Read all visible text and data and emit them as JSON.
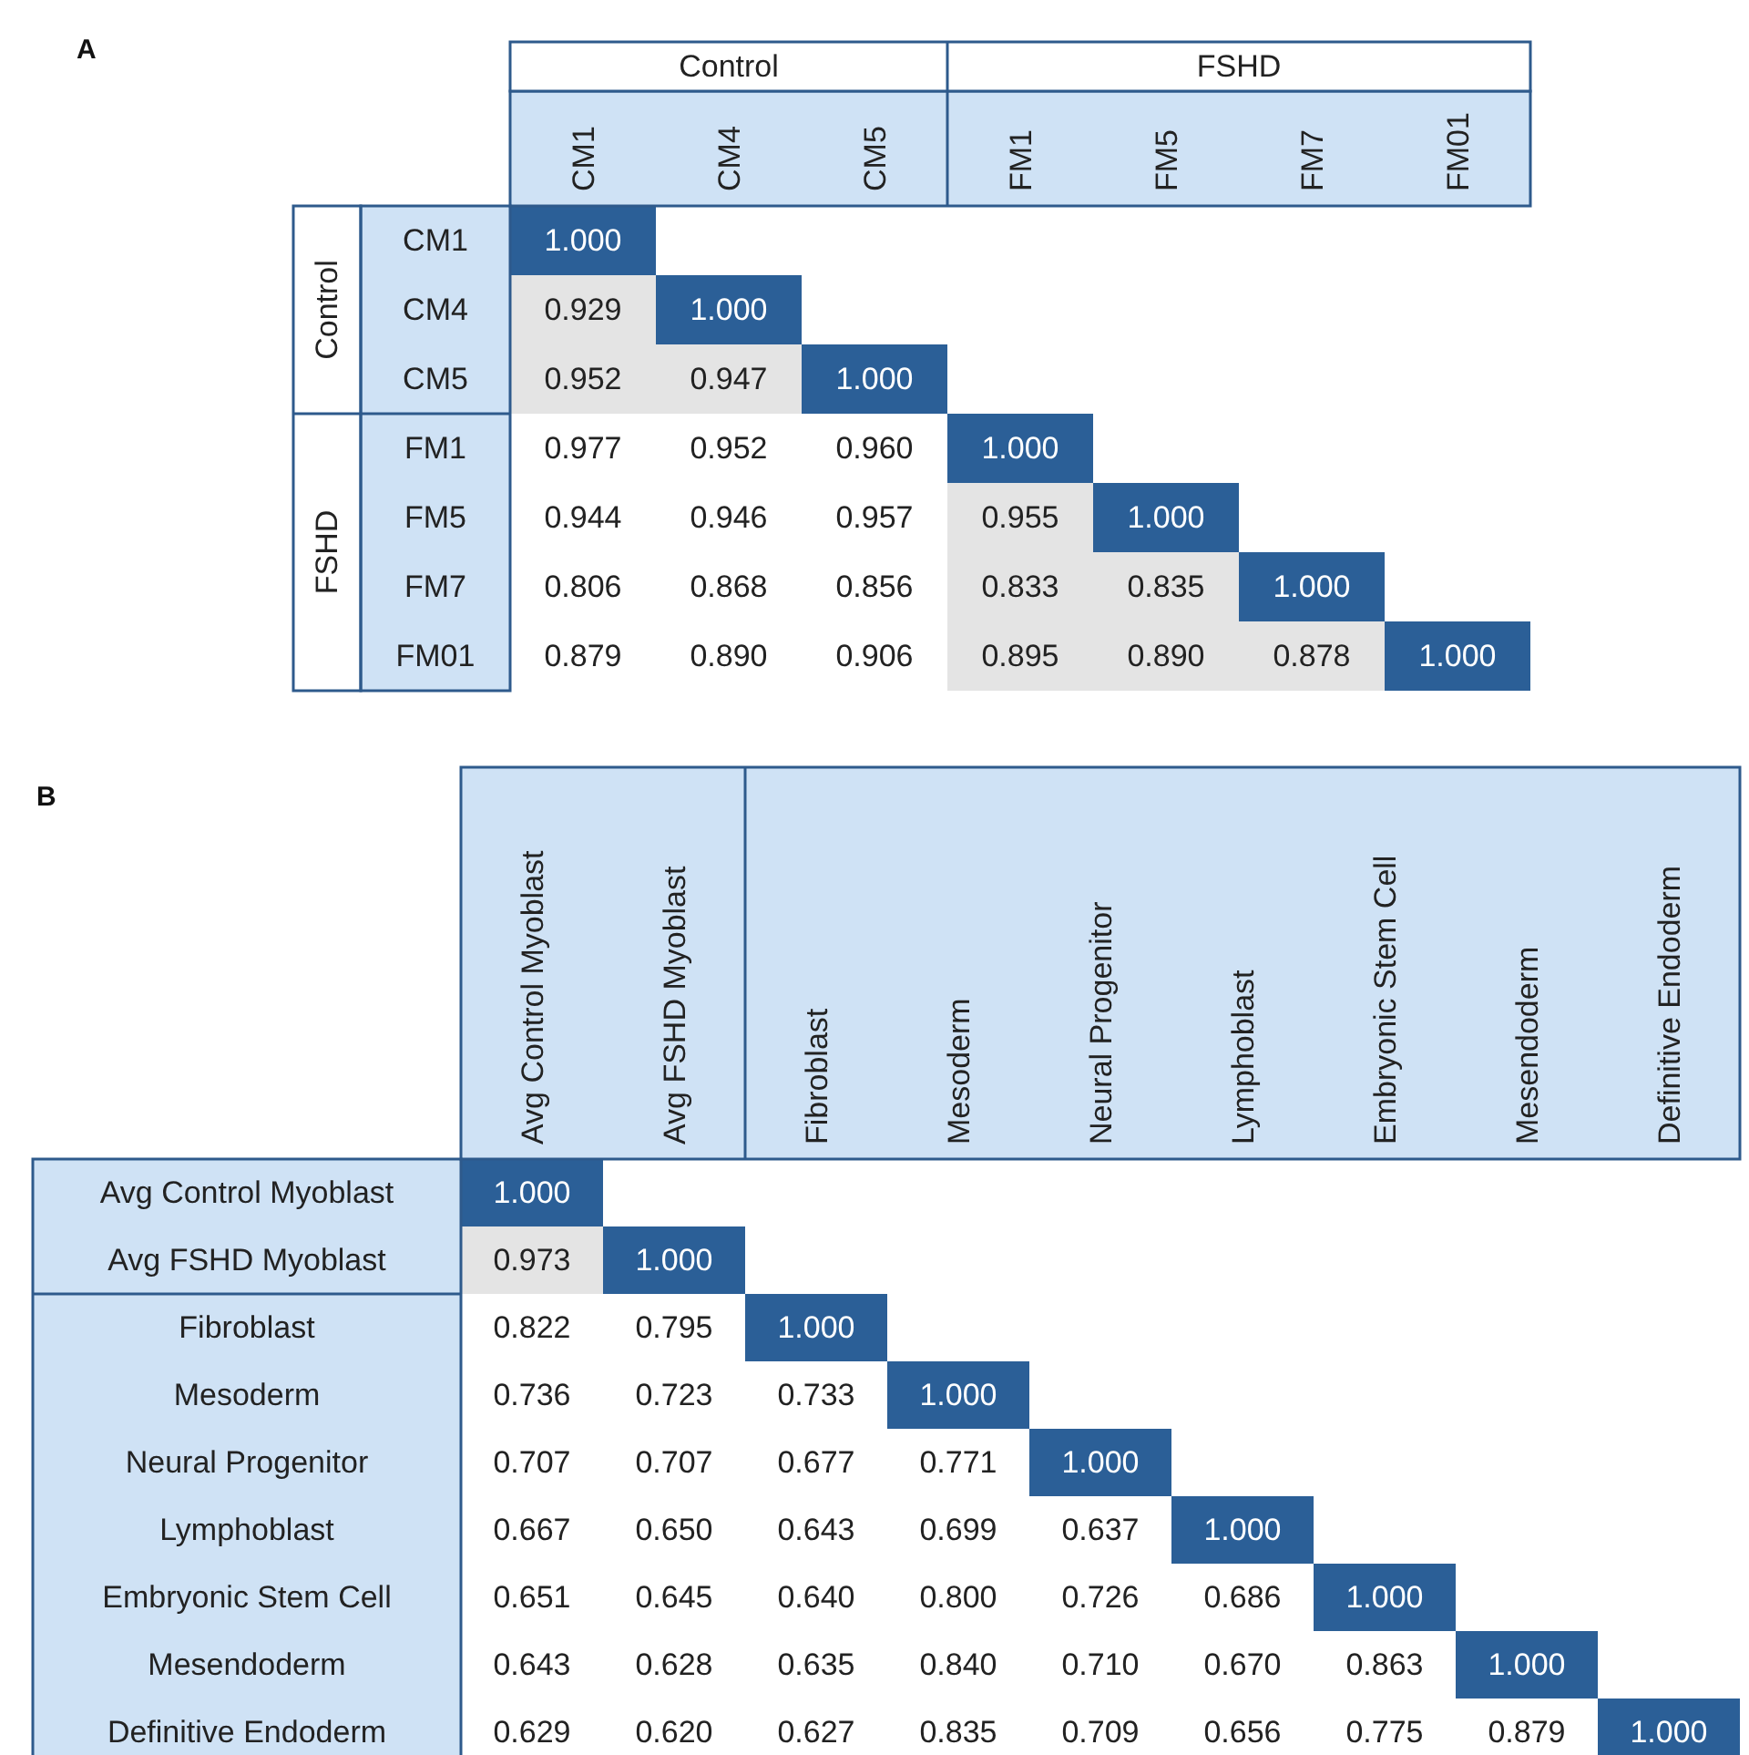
{
  "chart_data": [
    {
      "type": "heatmap",
      "annotations": [
        "A",
        "Control",
        "FSHD",
        "Control",
        "FSHD"
      ],
      "categories": [
        "CM1",
        "CM4",
        "CM5",
        "FM1",
        "FM5",
        "FM7",
        "FM01"
      ],
      "y_categories": [
        "CM1",
        "CM4",
        "CM5",
        "FM1",
        "FM5",
        "FM7",
        "FM01"
      ],
      "cells": [
        [
          1.0,
          null,
          null,
          null,
          null,
          null,
          null
        ],
        [
          0.929,
          1.0,
          null,
          null,
          null,
          null,
          null
        ],
        [
          0.952,
          0.947,
          1.0,
          null,
          null,
          null,
          null
        ],
        [
          0.977,
          0.952,
          0.96,
          1.0,
          null,
          null,
          null
        ],
        [
          0.944,
          0.946,
          0.957,
          0.955,
          1.0,
          null,
          null
        ],
        [
          0.806,
          0.868,
          0.856,
          0.833,
          0.835,
          1.0,
          null
        ],
        [
          0.879,
          0.89,
          0.906,
          0.895,
          0.89,
          0.878,
          1.0
        ]
      ],
      "cell_labels": [
        [
          "1.000",
          null,
          null,
          null,
          null,
          null,
          null
        ],
        [
          "0.929",
          "1.000",
          null,
          null,
          null,
          null,
          null
        ],
        [
          "0.952",
          "0.947",
          "1.000",
          null,
          null,
          null,
          null
        ],
        [
          "0.977",
          "0.952",
          "0.960",
          "1.000",
          null,
          null,
          null
        ],
        [
          "0.944",
          "0.946",
          "0.957",
          "0.955",
          "1.000",
          null,
          null
        ],
        [
          "0.806",
          "0.868",
          "0.856",
          "0.833",
          "0.835",
          "1.000",
          null
        ],
        [
          "0.879",
          "0.890",
          "0.906",
          "0.895",
          "0.890",
          "0.878",
          "1.000"
        ]
      ]
    },
    {
      "type": "heatmap",
      "annotations": [
        "B"
      ],
      "categories": [
        "Avg Control Myoblast",
        "Avg FSHD Myoblast",
        "Fibroblast",
        "Mesoderm",
        "Neural Progenitor",
        "Lymphoblast",
        "Embryonic Stem Cell",
        "Mesendoderm",
        "Definitive Endoderm"
      ],
      "y_categories": [
        "Avg Control Myoblast",
        "Avg FSHD Myoblast",
        "Fibroblast",
        "Mesoderm",
        "Neural Progenitor",
        "Lymphoblast",
        "Embryonic Stem Cell",
        "Mesendoderm",
        "Definitive Endoderm"
      ],
      "cells": [
        [
          1.0,
          null,
          null,
          null,
          null,
          null,
          null,
          null,
          null
        ],
        [
          0.973,
          1.0,
          null,
          null,
          null,
          null,
          null,
          null,
          null
        ],
        [
          0.822,
          0.795,
          1.0,
          null,
          null,
          null,
          null,
          null,
          null
        ],
        [
          0.736,
          0.723,
          0.733,
          1.0,
          null,
          null,
          null,
          null,
          null
        ],
        [
          0.707,
          0.707,
          0.677,
          0.771,
          1.0,
          null,
          null,
          null,
          null
        ],
        [
          0.667,
          0.65,
          0.643,
          0.699,
          0.637,
          1.0,
          null,
          null,
          null
        ],
        [
          0.651,
          0.645,
          0.64,
          0.8,
          0.726,
          0.686,
          1.0,
          null,
          null
        ],
        [
          0.643,
          0.628,
          0.635,
          0.84,
          0.71,
          0.67,
          0.863,
          1.0,
          null
        ],
        [
          0.629,
          0.62,
          0.627,
          0.835,
          0.709,
          0.656,
          0.775,
          0.879,
          1.0
        ]
      ],
      "cell_labels": [
        [
          "1.000",
          null,
          null,
          null,
          null,
          null,
          null,
          null,
          null
        ],
        [
          "0.973",
          "1.000",
          null,
          null,
          null,
          null,
          null,
          null,
          null
        ],
        [
          "0.822",
          "0.795",
          "1.000",
          null,
          null,
          null,
          null,
          null,
          null
        ],
        [
          "0.736",
          "0.723",
          "0.733",
          "1.000",
          null,
          null,
          null,
          null,
          null
        ],
        [
          "0.707",
          "0.707",
          "0.677",
          "0.771",
          "1.000",
          null,
          null,
          null,
          null
        ],
        [
          "0.667",
          "0.650",
          "0.643",
          "0.699",
          "0.637",
          "1.000",
          null,
          null,
          null
        ],
        [
          "0.651",
          "0.645",
          "0.640",
          "0.800",
          "0.726",
          "0.686",
          "1.000",
          null,
          null
        ],
        [
          "0.643",
          "0.628",
          "0.635",
          "0.840",
          "0.710",
          "0.670",
          "0.863",
          "1.000",
          null
        ],
        [
          "0.629",
          "0.620",
          "0.627",
          "0.835",
          "0.709",
          "0.656",
          "0.775",
          "0.879",
          "1.000"
        ]
      ]
    }
  ]
}
